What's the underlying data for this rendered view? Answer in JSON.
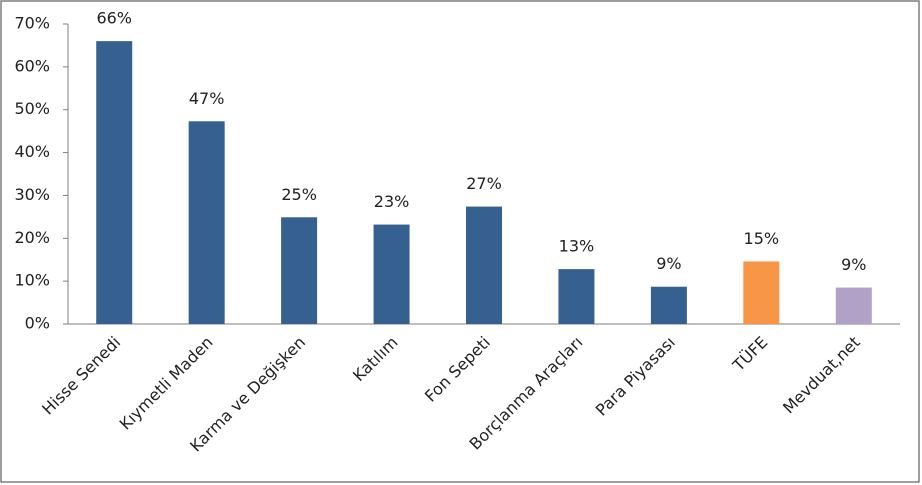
{
  "chart_data": {
    "type": "bar",
    "categories": [
      "Hisse Senedi",
      "Kıymetli Maden",
      "Karma ve Değişken",
      "Katılım",
      "Fon Sepeti",
      "Borçlanma Araçları",
      "Para Piyasası",
      "TÜFE",
      "Mevduat,net"
    ],
    "values": [
      66,
      47.3,
      24.9,
      23.2,
      27.4,
      12.8,
      8.7,
      14.6,
      8.5
    ],
    "value_labels": [
      "66%",
      "47%",
      "25%",
      "23%",
      "27%",
      "13%",
      "9%",
      "15%",
      "9%"
    ],
    "colors": [
      "#35608f",
      "#35608f",
      "#35608f",
      "#35608f",
      "#35608f",
      "#35608f",
      "#35608f",
      "#f79646",
      "#b2a1c7"
    ],
    "ylim": [
      0,
      70
    ],
    "yticks": [
      {
        "value": 0,
        "label": "0%"
      },
      {
        "value": 10,
        "label": "10%"
      },
      {
        "value": 20,
        "label": "20%"
      },
      {
        "value": 30,
        "label": "30%"
      },
      {
        "value": 40,
        "label": "40%"
      },
      {
        "value": 50,
        "label": "50%"
      },
      {
        "value": 60,
        "label": "60%"
      },
      {
        "value": 70,
        "label": "70%"
      }
    ],
    "grid": false
  }
}
